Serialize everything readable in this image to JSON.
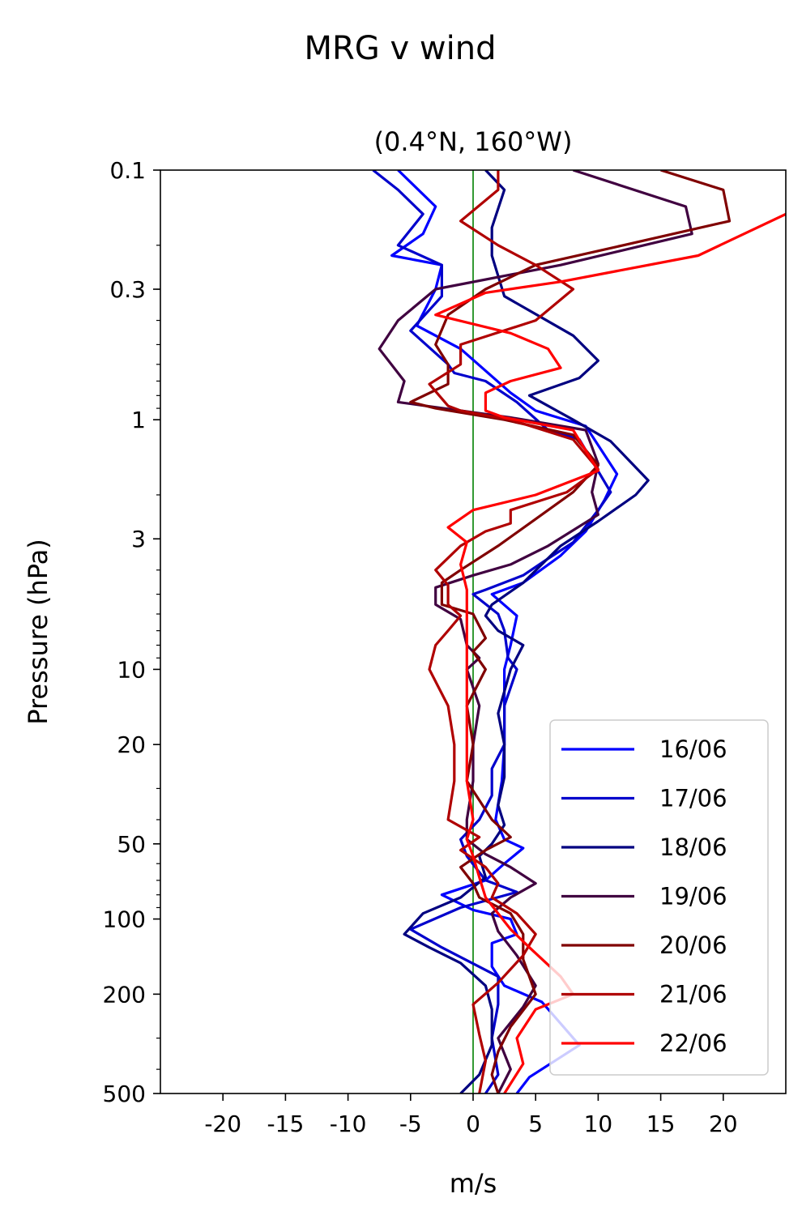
{
  "figure": {
    "suptitle": "MRG v wind"
  },
  "chart_data": {
    "type": "line",
    "title": "(0.4°N, 160°W)",
    "xlabel": "m/s",
    "ylabel": "Pressure (hPa)",
    "xlim": [
      -25,
      25
    ],
    "ylim": [
      500,
      0.1
    ],
    "yscale": "log",
    "grid": false,
    "legend_position": "lower-right",
    "xticks": [
      -20,
      -15,
      -10,
      -5,
      0,
      5,
      10,
      15,
      20
    ],
    "xtick_labels": [
      "-20",
      "-15",
      "-10",
      "-5",
      "0",
      "5",
      "10",
      "15",
      "20"
    ],
    "yticks": [
      0.1,
      0.3,
      1,
      3,
      10,
      20,
      50,
      100,
      200,
      500
    ],
    "ytick_labels": [
      "0.1",
      "0.3",
      "1",
      "3",
      "10",
      "20",
      "50",
      "100",
      "200",
      "500"
    ],
    "zero_line_color": "#008000",
    "series": [
      {
        "name": "16/06",
        "color": "#0000ff",
        "points": [
          [
            -6,
            0.1
          ],
          [
            -3,
            0.14
          ],
          [
            -4,
            0.18
          ],
          [
            -6.5,
            0.22
          ],
          [
            -2.5,
            0.24
          ],
          [
            -3,
            0.3
          ],
          [
            -4.5,
            0.42
          ],
          [
            -1,
            0.52
          ],
          [
            3,
            0.78
          ],
          [
            5,
            0.92
          ],
          [
            9,
            1.06
          ],
          [
            11.5,
            1.65
          ],
          [
            10.5,
            2.1
          ],
          [
            9,
            2.8
          ],
          [
            7,
            3.5
          ],
          [
            4,
            4.5
          ],
          [
            1.5,
            5
          ],
          [
            3.5,
            6.1
          ],
          [
            3,
            8
          ],
          [
            2.5,
            10
          ],
          [
            2.5,
            14
          ],
          [
            2.5,
            20
          ],
          [
            2.3,
            28
          ],
          [
            1.8,
            40
          ],
          [
            2.5,
            48
          ],
          [
            4,
            52
          ],
          [
            2.5,
            60
          ],
          [
            1,
            70
          ],
          [
            -2.5,
            80
          ],
          [
            0,
            92
          ],
          [
            3,
            100
          ],
          [
            3.5,
            115
          ],
          [
            1.5,
            125
          ],
          [
            1.5,
            155
          ],
          [
            2.5,
            185
          ],
          [
            5.5,
            215
          ],
          [
            8.5,
            320
          ],
          [
            4.5,
            430
          ],
          [
            3.5,
            500
          ]
        ]
      },
      {
        "name": "17/06",
        "color": "#0000cc",
        "points": [
          [
            -8,
            0.1
          ],
          [
            -6,
            0.12
          ],
          [
            -4,
            0.15
          ],
          [
            -6,
            0.2
          ],
          [
            -2.5,
            0.24
          ],
          [
            -2.5,
            0.32
          ],
          [
            -5,
            0.44
          ],
          [
            -2,
            0.6
          ],
          [
            -1.5,
            0.65
          ],
          [
            1,
            0.7
          ],
          [
            3.5,
            0.85
          ],
          [
            6,
            1.1
          ],
          [
            8.5,
            1.2
          ],
          [
            11,
            1.95
          ],
          [
            10,
            2.3
          ],
          [
            8,
            3.1
          ],
          [
            6,
            3.6
          ],
          [
            4,
            4.2
          ],
          [
            1,
            4.8
          ],
          [
            0,
            5
          ],
          [
            2,
            6
          ],
          [
            2.5,
            7
          ],
          [
            2.8,
            9
          ],
          [
            3.5,
            10
          ],
          [
            2.5,
            14
          ],
          [
            2.5,
            20
          ],
          [
            1.5,
            25
          ],
          [
            1.5,
            32
          ],
          [
            0.5,
            40
          ],
          [
            -1,
            48
          ],
          [
            -0.5,
            56
          ],
          [
            1,
            70
          ],
          [
            3.5,
            78
          ],
          [
            -1,
            90
          ],
          [
            -5,
            110
          ],
          [
            -2.5,
            130
          ],
          [
            2,
            170
          ],
          [
            2,
            220
          ],
          [
            1.5,
            300
          ],
          [
            2,
            420
          ],
          [
            1,
            500
          ]
        ]
      },
      {
        "name": "18/06",
        "color": "#000080",
        "points": [
          [
            1,
            0.1
          ],
          [
            2.5,
            0.12
          ],
          [
            1.5,
            0.17
          ],
          [
            1.5,
            0.22
          ],
          [
            2.5,
            0.32
          ],
          [
            8,
            0.46
          ],
          [
            10,
            0.58
          ],
          [
            8.5,
            0.68
          ],
          [
            4.5,
            0.8
          ],
          [
            8,
            1
          ],
          [
            11,
            1.22
          ],
          [
            14,
            1.75
          ],
          [
            13,
            2
          ],
          [
            10,
            2.55
          ],
          [
            7,
            3.2
          ],
          [
            4,
            4.5
          ],
          [
            1.5,
            5.5
          ],
          [
            1,
            6.1
          ],
          [
            2,
            7
          ],
          [
            4,
            8
          ],
          [
            3,
            10
          ],
          [
            2,
            15
          ],
          [
            2.5,
            20
          ],
          [
            2.5,
            27
          ],
          [
            2,
            35
          ],
          [
            2.5,
            42
          ],
          [
            1.5,
            50
          ],
          [
            0.5,
            56
          ],
          [
            1,
            68
          ],
          [
            -1,
            82
          ],
          [
            -4,
            95
          ],
          [
            -5.5,
            115
          ],
          [
            -3.5,
            130
          ],
          [
            -1,
            150
          ],
          [
            1,
            185
          ],
          [
            1.5,
            230
          ],
          [
            1.5,
            320
          ],
          [
            0.5,
            420
          ],
          [
            -1,
            500
          ]
        ]
      },
      {
        "name": "19/06",
        "color": "#400040",
        "points": [
          [
            8,
            0.1
          ],
          [
            17,
            0.14
          ],
          [
            17.5,
            0.18
          ],
          [
            7,
            0.24
          ],
          [
            -3,
            0.3
          ],
          [
            -6,
            0.4
          ],
          [
            -7.5,
            0.52
          ],
          [
            -5.5,
            0.7
          ],
          [
            -6,
            0.85
          ],
          [
            -1,
            0.92
          ],
          [
            3,
            0.98
          ],
          [
            9,
            1.1
          ],
          [
            10,
            1.5
          ],
          [
            9.5,
            1.95
          ],
          [
            10,
            2.4
          ],
          [
            6,
            3.2
          ],
          [
            3,
            3.8
          ],
          [
            0,
            4.2
          ],
          [
            -3,
            4.7
          ],
          [
            -3,
            5.5
          ],
          [
            -1,
            6.3
          ],
          [
            -0.5,
            8
          ],
          [
            0.5,
            9
          ],
          [
            -0.5,
            10
          ],
          [
            0.5,
            14
          ],
          [
            0,
            20
          ],
          [
            0,
            28
          ],
          [
            -0.5,
            40
          ],
          [
            -0.5,
            48
          ],
          [
            1,
            55
          ],
          [
            3,
            62
          ],
          [
            5,
            72
          ],
          [
            3,
            82
          ],
          [
            1.5,
            95
          ],
          [
            2,
            112
          ],
          [
            3.5,
            140
          ],
          [
            5,
            185
          ],
          [
            4,
            225
          ],
          [
            2,
            300
          ],
          [
            3,
            400
          ],
          [
            2,
            500
          ]
        ]
      },
      {
        "name": "20/06",
        "color": "#800000",
        "points": [
          [
            15,
            0.1
          ],
          [
            20,
            0.12
          ],
          [
            20.5,
            0.16
          ],
          [
            12,
            0.2
          ],
          [
            5,
            0.24
          ],
          [
            1,
            0.3
          ],
          [
            -2,
            0.38
          ],
          [
            -3,
            0.5
          ],
          [
            -2,
            0.6
          ],
          [
            -2,
            0.72
          ],
          [
            -5,
            0.85
          ],
          [
            -3,
            0.9
          ],
          [
            2.5,
            1
          ],
          [
            8,
            1.15
          ],
          [
            10,
            1.52
          ],
          [
            8,
            1.95
          ],
          [
            5,
            2.5
          ],
          [
            2,
            3.2
          ],
          [
            -1,
            4
          ],
          [
            -2.5,
            4.5
          ],
          [
            -2.5,
            5.5
          ],
          [
            0,
            6
          ],
          [
            1,
            7.5
          ],
          [
            0,
            8.5
          ],
          [
            1,
            10
          ],
          [
            -0.5,
            14
          ],
          [
            0,
            20
          ],
          [
            -0.5,
            28
          ],
          [
            1.5,
            40
          ],
          [
            3,
            47
          ],
          [
            1,
            53
          ],
          [
            -1,
            62
          ],
          [
            0,
            72
          ],
          [
            0.5,
            82
          ],
          [
            3,
            95
          ],
          [
            4,
            115
          ],
          [
            4,
            145
          ],
          [
            5,
            200
          ],
          [
            3,
            270
          ],
          [
            2,
            340
          ],
          [
            1.5,
            420
          ],
          [
            2,
            500
          ]
        ]
      },
      {
        "name": "21/06",
        "color": "#b00000",
        "points": [
          [
            2,
            0.1
          ],
          [
            2,
            0.12
          ],
          [
            -1,
            0.16
          ],
          [
            2,
            0.2
          ],
          [
            5,
            0.24
          ],
          [
            8,
            0.3
          ],
          [
            5,
            0.4
          ],
          [
            -1,
            0.5
          ],
          [
            -1,
            0.6
          ],
          [
            -3.5,
            0.72
          ],
          [
            -2,
            0.88
          ],
          [
            -1,
            0.92
          ],
          [
            3,
            1
          ],
          [
            8,
            1.2
          ],
          [
            10,
            1.58
          ],
          [
            7.5,
            1.95
          ],
          [
            3,
            2.3
          ],
          [
            3,
            2.6
          ],
          [
            1,
            2.8
          ],
          [
            -1,
            3.2
          ],
          [
            -3,
            4
          ],
          [
            -2,
            4.6
          ],
          [
            -2,
            5.5
          ],
          [
            -1,
            6.1
          ],
          [
            -2,
            7
          ],
          [
            -3,
            8
          ],
          [
            -3.5,
            10
          ],
          [
            -2,
            14
          ],
          [
            -1.5,
            20
          ],
          [
            -1.5,
            28
          ],
          [
            -2,
            40
          ],
          [
            0.5,
            47
          ],
          [
            -1,
            53
          ],
          [
            1,
            62
          ],
          [
            2,
            72
          ],
          [
            1.5,
            82
          ],
          [
            3.5,
            95
          ],
          [
            5,
            115
          ],
          [
            4,
            140
          ],
          [
            2,
            180
          ],
          [
            0,
            220
          ],
          [
            0.5,
            290
          ],
          [
            1,
            370
          ],
          [
            0.5,
            500
          ]
        ]
      },
      {
        "name": "22/06",
        "color": "#ff0000",
        "points": [
          [
            25,
            0.15
          ],
          [
            18,
            0.22
          ],
          [
            7,
            0.28
          ],
          [
            1,
            0.31
          ],
          [
            -3,
            0.38
          ],
          [
            3,
            0.45
          ],
          [
            6,
            0.52
          ],
          [
            7,
            0.62
          ],
          [
            3,
            0.7
          ],
          [
            1,
            0.78
          ],
          [
            1,
            0.92
          ],
          [
            2.5,
            0.98
          ],
          [
            8,
            1.1
          ],
          [
            10,
            1.6
          ],
          [
            5,
            2
          ],
          [
            0,
            2.3
          ],
          [
            -2,
            2.7
          ],
          [
            -0.5,
            3.1
          ],
          [
            -1,
            3.8
          ],
          [
            -0.5,
            4.8
          ],
          [
            -0.5,
            7.5
          ],
          [
            -0.5,
            10
          ],
          [
            -0.5,
            14
          ],
          [
            -0.5,
            20
          ],
          [
            -0.5,
            28
          ],
          [
            0,
            40
          ],
          [
            -0.5,
            48
          ],
          [
            0,
            56
          ],
          [
            0.5,
            68
          ],
          [
            1,
            82
          ],
          [
            2,
            95
          ],
          [
            3,
            110
          ],
          [
            4.5,
            130
          ],
          [
            7,
            170
          ],
          [
            8,
            200
          ],
          [
            5,
            230
          ],
          [
            3.5,
            300
          ],
          [
            4,
            380
          ],
          [
            2.5,
            500
          ]
        ]
      }
    ]
  }
}
